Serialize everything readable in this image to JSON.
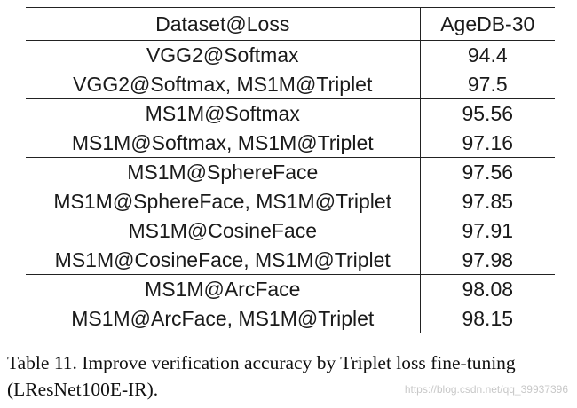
{
  "table": {
    "headers": [
      "Dataset@Loss",
      "AgeDB-30"
    ],
    "groups": [
      {
        "rows": [
          [
            "VGG2@Softmax",
            "94.4"
          ],
          [
            "VGG2@Softmax, MS1M@Triplet",
            "97.5"
          ]
        ]
      },
      {
        "rows": [
          [
            "MS1M@Softmax",
            "95.56"
          ],
          [
            "MS1M@Softmax, MS1M@Triplet",
            "97.16"
          ]
        ]
      },
      {
        "rows": [
          [
            "MS1M@SphereFace",
            "97.56"
          ],
          [
            "MS1M@SphereFace, MS1M@Triplet",
            "97.85"
          ]
        ]
      },
      {
        "rows": [
          [
            "MS1M@CosineFace",
            "97.91"
          ],
          [
            "MS1M@CosineFace, MS1M@Triplet",
            "97.98"
          ]
        ]
      },
      {
        "rows": [
          [
            "MS1M@ArcFace",
            "98.08"
          ],
          [
            "MS1M@ArcFace, MS1M@Triplet",
            "98.15"
          ]
        ]
      }
    ],
    "best_value": "98.15"
  },
  "caption": {
    "text": "Table 11. Improve verification accuracy by Triplet loss fine-tuning (LResNet100E-IR)."
  },
  "watermark": {
    "text": "https://blog.csdn.net/qq_39937396"
  }
}
